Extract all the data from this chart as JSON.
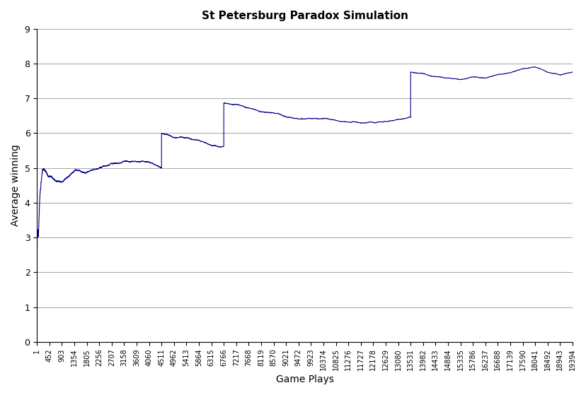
{
  "title": "St Petersburg Paradox Simulation",
  "xlabel": "Game Plays",
  "ylabel": "Average winning",
  "ylim": [
    0,
    9
  ],
  "xlim": [
    1,
    19394
  ],
  "line_color": "#00008B",
  "line_width": 0.8,
  "bg_color": "#ffffff",
  "xticks": [
    1,
    452,
    903,
    1354,
    1805,
    2256,
    2707,
    3158,
    3609,
    4060,
    4511,
    4962,
    5413,
    5864,
    6315,
    6766,
    7217,
    7668,
    8119,
    8570,
    9021,
    9472,
    9923,
    10374,
    10825,
    11276,
    11727,
    12178,
    12629,
    13080,
    13531,
    13982,
    14433,
    14884,
    15335,
    15786,
    16237,
    16688,
    17139,
    17590,
    18041,
    18492,
    18943,
    19394
  ],
  "yticks": [
    0,
    1,
    2,
    3,
    4,
    5,
    6,
    7,
    8,
    9
  ],
  "n_games": 19394
}
